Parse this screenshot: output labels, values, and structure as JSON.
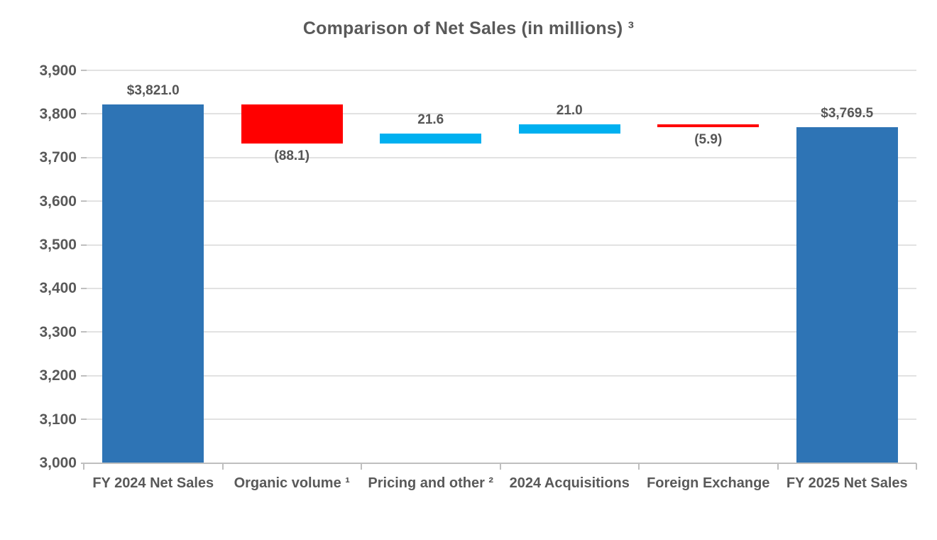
{
  "title": "Comparison of Net Sales (in millions) ³",
  "chart_data": {
    "type": "bar",
    "subtype": "waterfall",
    "title": "Comparison of Net Sales (in millions) ³",
    "categories": [
      "FY 2024 Net Sales",
      "Organic volume ¹",
      "Pricing and other ²",
      "2024 Acquisitions",
      "Foreign Exchange",
      "FY 2025 Net Sales"
    ],
    "bars": [
      {
        "category": "FY 2024 Net Sales",
        "label": "$3,821.0",
        "value": 3821.0,
        "from": 3000.0,
        "to": 3821.0,
        "color_key": "total",
        "label_position": "above"
      },
      {
        "category": "Organic volume ¹",
        "label": "(88.1)",
        "value": -88.1,
        "from": 3821.0,
        "to": 3732.9,
        "color_key": "decrease",
        "label_position": "below"
      },
      {
        "category": "Pricing and other ²",
        "label": "21.6",
        "value": 21.6,
        "from": 3732.9,
        "to": 3754.5,
        "color_key": "increase",
        "label_position": "above"
      },
      {
        "category": "2024 Acquisitions",
        "label": "21.0",
        "value": 21.0,
        "from": 3754.5,
        "to": 3775.5,
        "color_key": "increase",
        "label_position": "above"
      },
      {
        "category": "Foreign Exchange",
        "label": "(5.9)",
        "value": -5.9,
        "from": 3775.5,
        "to": 3769.6,
        "color_key": "decrease",
        "label_position": "below"
      },
      {
        "category": "FY 2025 Net Sales",
        "label": "$3,769.5",
        "value": 3769.5,
        "from": 3000.0,
        "to": 3769.5,
        "color_key": "total",
        "label_position": "above"
      }
    ],
    "colors": {
      "total": "#2e74b5",
      "increase": "#00b0f0",
      "decrease": "#ff0000"
    },
    "ylim": [
      3000,
      3900
    ],
    "ytick_step": 100,
    "yticks": [
      {
        "value": 3900,
        "label": "3,900"
      },
      {
        "value": 3800,
        "label": "3,800"
      },
      {
        "value": 3700,
        "label": "3,700"
      },
      {
        "value": 3600,
        "label": "3,600"
      },
      {
        "value": 3500,
        "label": "3,500"
      },
      {
        "value": 3400,
        "label": "3,400"
      },
      {
        "value": 3300,
        "label": "3,300"
      },
      {
        "value": 3200,
        "label": "3,200"
      },
      {
        "value": 3100,
        "label": "3,100"
      },
      {
        "value": 3000,
        "label": "3,000"
      }
    ],
    "grid": true,
    "legend": false
  }
}
